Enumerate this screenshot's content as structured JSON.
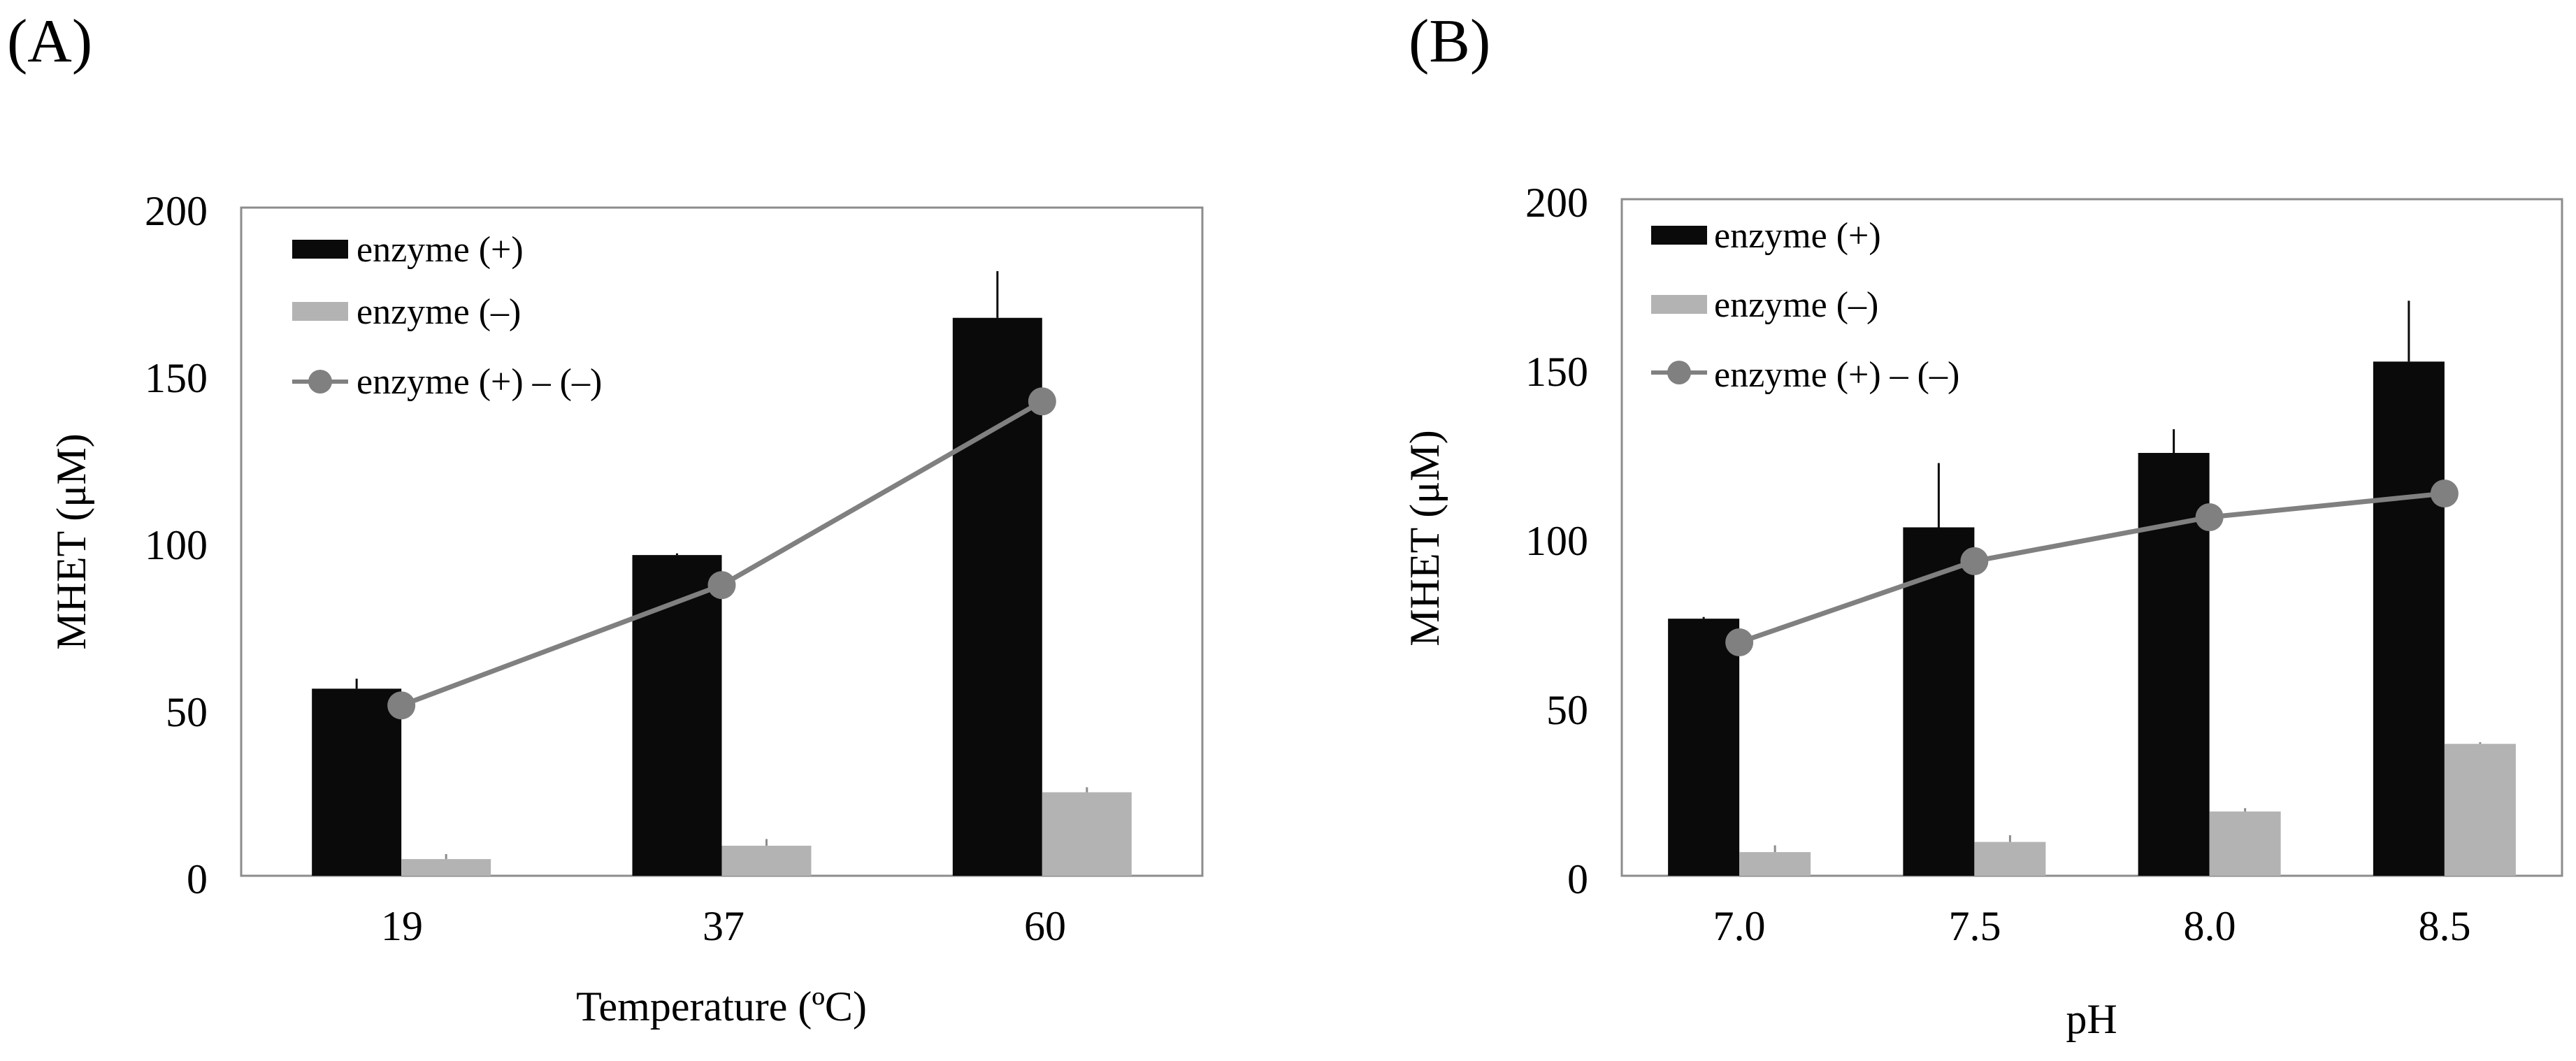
{
  "colors": {
    "enzyme_plus": "#0a0a0a",
    "enzyme_minus": "#b3b3b3",
    "difference": "#808080",
    "axis": "#8c8c8c",
    "text": "#000000"
  },
  "chart_data": [
    {
      "panel_label": "(A)",
      "type": "bar",
      "title": "",
      "xlabel": "Temperature (ºC)",
      "ylabel": "MHET (μM)",
      "ylim": [
        0,
        200
      ],
      "yticks": [
        "0",
        "50",
        "100",
        "150",
        "200"
      ],
      "categories": [
        "19",
        "37",
        "60"
      ],
      "legend_position": "top-left",
      "series": [
        {
          "name": "enzyme (+)",
          "kind": "bar",
          "color": "#0a0a0a",
          "values": [
            56,
            96,
            167
          ],
          "errors": [
            3,
            0.5,
            14
          ]
        },
        {
          "name": "enzyme (–)",
          "kind": "bar",
          "color": "#b3b3b3",
          "values": [
            5,
            9,
            25
          ],
          "errors": [
            1.5,
            2,
            1.5
          ]
        },
        {
          "name": "enzyme (+) – (–)",
          "kind": "line",
          "color": "#808080",
          "values": [
            51,
            87,
            142
          ]
        }
      ]
    },
    {
      "panel_label": "(B)",
      "type": "bar",
      "title": "",
      "xlabel": "pH",
      "ylabel": "MHET (μM)",
      "ylim": [
        0,
        200
      ],
      "yticks": [
        "0",
        "50",
        "100",
        "150",
        "200"
      ],
      "categories": [
        "7.0",
        "7.5",
        "8.0",
        "8.5"
      ],
      "legend_position": "top-left",
      "series": [
        {
          "name": "enzyme (+)",
          "kind": "bar",
          "color": "#0a0a0a",
          "values": [
            76,
            103,
            125,
            152
          ],
          "errors": [
            0.5,
            19,
            7,
            18
          ]
        },
        {
          "name": "enzyme (–)",
          "kind": "bar",
          "color": "#b3b3b3",
          "values": [
            7,
            10,
            19,
            39
          ],
          "errors": [
            2,
            2,
            1,
            0.5
          ]
        },
        {
          "name": "enzyme (+) – (–)",
          "kind": "line",
          "color": "#808080",
          "values": [
            69,
            93,
            106,
            113
          ]
        }
      ]
    }
  ]
}
